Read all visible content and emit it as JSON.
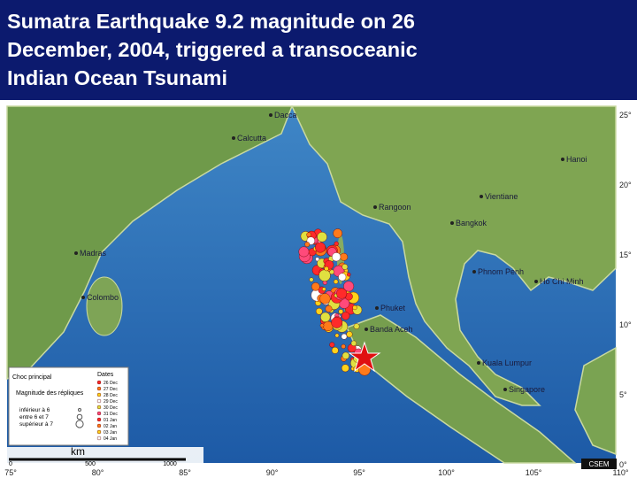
{
  "header": {
    "title_lines": [
      "Sumatra Earthquake 9.2 magnitude on 26",
      "December, 2004, triggered a transoceanic",
      "Indian Ocean Tsunami"
    ]
  },
  "map": {
    "cities": [
      "Dacca",
      "Calcutta",
      "Hanoi",
      "Vientiane",
      "Rangoon",
      "Madras",
      "Bangkok",
      "Phnom Penh",
      "Ho Chi Minh",
      "Colombo",
      "Phuket",
      "Banda Aceh",
      "Kuala Lumpur",
      "Singapore"
    ],
    "lon_labels": [
      "75°",
      "80°",
      "85°",
      "90°",
      "95°",
      "100°",
      "105°",
      "110°"
    ],
    "lat_labels": [
      "25°",
      "20°",
      "15°",
      "10°",
      "5°",
      "0°"
    ],
    "credit": "CSEM",
    "legend": {
      "main_shock": "Choc principal",
      "magnitude_title": "Magnitude des répliques",
      "magnitudes": [
        "inférieur à 6",
        "entre 6 et 7",
        "supérieur à 7"
      ],
      "dates_title": "Dates",
      "dates": [
        "26 Dec",
        "27 Dec",
        "28 Dec",
        "29 Dec",
        "30 Dec",
        "31 Dec",
        "01 Jan",
        "02 Jan",
        "03 Jan",
        "04 Jan"
      ]
    },
    "scale": {
      "unit": "km",
      "labels": [
        "0",
        "500",
        "1000"
      ]
    }
  }
}
